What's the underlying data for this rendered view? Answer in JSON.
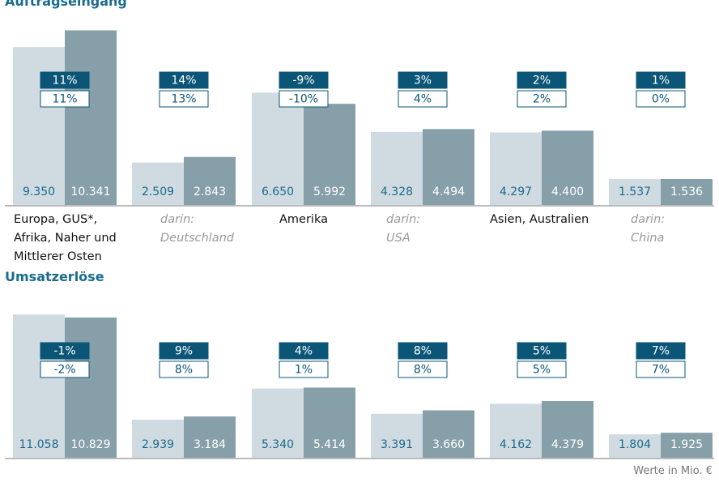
{
  "chart_data": [
    {
      "type": "bar",
      "title": "Auftragseingang",
      "categories": [
        "Europa, GUS*,\nAfrika, Naher und\nMittlerer Osten",
        "darin:\nDeutschland",
        "Amerika",
        "darin:\nUSA",
        "Asien, Australien",
        "darin:\nChina"
      ],
      "series": [
        {
          "color": "#cfdbe1",
          "values": [
            9350,
            2509,
            6650,
            4328,
            4297,
            1537
          ],
          "value_labels": [
            "9.350",
            "2.509",
            "6.650",
            "4.328",
            "4.297",
            "1.537"
          ]
        },
        {
          "color": "#879fa8",
          "values": [
            10341,
            2843,
            5992,
            4494,
            4400,
            1536
          ],
          "value_labels": [
            "10.341",
            "2.843",
            "5.992",
            "4.494",
            "4.400",
            "1.536"
          ]
        }
      ],
      "changes": [
        {
          "values": [
            11,
            14,
            -9,
            3,
            2,
            1
          ],
          "value_labels": [
            "11%",
            "14%",
            "-9%",
            "3%",
            "2%",
            "1%"
          ]
        },
        {
          "values": [
            11,
            13,
            -10,
            4,
            2,
            0
          ],
          "value_labels": [
            "11%",
            "13%",
            "-10%",
            "4%",
            "2%",
            "0%"
          ]
        }
      ],
      "ylim": [
        0,
        10700
      ]
    },
    {
      "type": "bar",
      "title": "Umsatzerlöse",
      "series": [
        {
          "color": "#cfdbe1",
          "values": [
            11058,
            2939,
            5340,
            3391,
            4162,
            1804
          ],
          "value_labels": [
            "11.058",
            "2.939",
            "5.340",
            "3.391",
            "4.162",
            "1.804"
          ]
        },
        {
          "color": "#879fa8",
          "values": [
            10829,
            3184,
            5414,
            3660,
            4379,
            1925
          ],
          "value_labels": [
            "10.829",
            "3.184",
            "5.414",
            "3.660",
            "4.379",
            "1.925"
          ]
        }
      ],
      "changes": [
        {
          "values": [
            -1,
            9,
            4,
            8,
            5,
            7
          ],
          "value_labels": [
            "-1%",
            "9%",
            "4%",
            "8%",
            "5%",
            "7%"
          ]
        },
        {
          "values": [
            -2,
            8,
            1,
            8,
            5,
            7
          ],
          "value_labels": [
            "-2%",
            "8%",
            "1%",
            "8%",
            "5%",
            "7%"
          ]
        }
      ],
      "ylim": [
        0,
        11700
      ]
    }
  ],
  "note": "Werte in Mio. €"
}
